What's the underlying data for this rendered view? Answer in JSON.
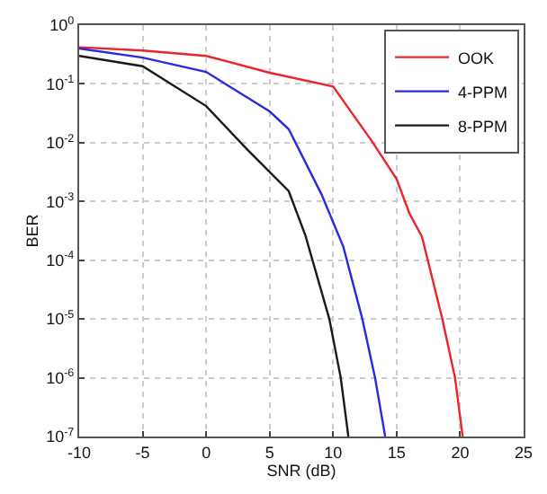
{
  "chart_data": {
    "type": "line",
    "xlabel": "SNR (dB)",
    "ylabel": "BER",
    "log": "y",
    "grid": true,
    "legend": "top right",
    "line_style": "solid",
    "marker": "none",
    "xlim": [
      -10,
      25
    ],
    "xticks": [
      -10,
      -5,
      0,
      5,
      10,
      15,
      20,
      25
    ],
    "ylim": [
      1e-07,
      1
    ],
    "yticks": [
      {
        "value": 1e-07,
        "label": "10$^{-7}$"
      },
      {
        "value": 1e-06,
        "label": "10$^{-6}$"
      },
      {
        "value": 1e-05,
        "label": "10$^{-5}$"
      },
      {
        "value": 0.0001,
        "label": "10$^{-4}$"
      },
      {
        "value": 0.001,
        "label": "10$^{-3}$"
      },
      {
        "value": 0.01,
        "label": "10$^{-2}$"
      },
      {
        "value": 0.1,
        "label": "10$^{-1}$"
      },
      {
        "value": 1,
        "label": "10$^{0}$"
      }
    ],
    "series": [
      {
        "name": "OOK",
        "color": "#e8262a",
        "x": [
          -10,
          -5,
          0,
          5,
          10,
          13,
          15,
          16,
          17,
          18.6,
          19.6,
          20.2
        ],
        "values": [
          0.42,
          0.37,
          0.3,
          0.155,
          0.09,
          0.011,
          0.0024,
          0.00063,
          0.00025,
          1e-05,
          1e-06,
          1e-07
        ]
      },
      {
        "name": "4-PPM",
        "color": "#2a2ae0",
        "x": [
          -10,
          -5,
          0,
          5,
          6.5,
          9.1,
          10.8,
          12.3,
          13.3,
          14.1
        ],
        "values": [
          0.4,
          0.28,
          0.16,
          0.034,
          0.017,
          0.0013,
          0.00017,
          1e-05,
          1e-06,
          1e-07
        ]
      },
      {
        "name": "8-PPM",
        "color": "#1a1a1a",
        "x": [
          -10,
          -5,
          0,
          3.3,
          6.5,
          7.8,
          9.7,
          10.6,
          11.2
        ],
        "values": [
          0.3,
          0.2,
          0.042,
          0.0074,
          0.0015,
          0.00027,
          1e-05,
          1e-06,
          1e-07
        ]
      }
    ]
  }
}
